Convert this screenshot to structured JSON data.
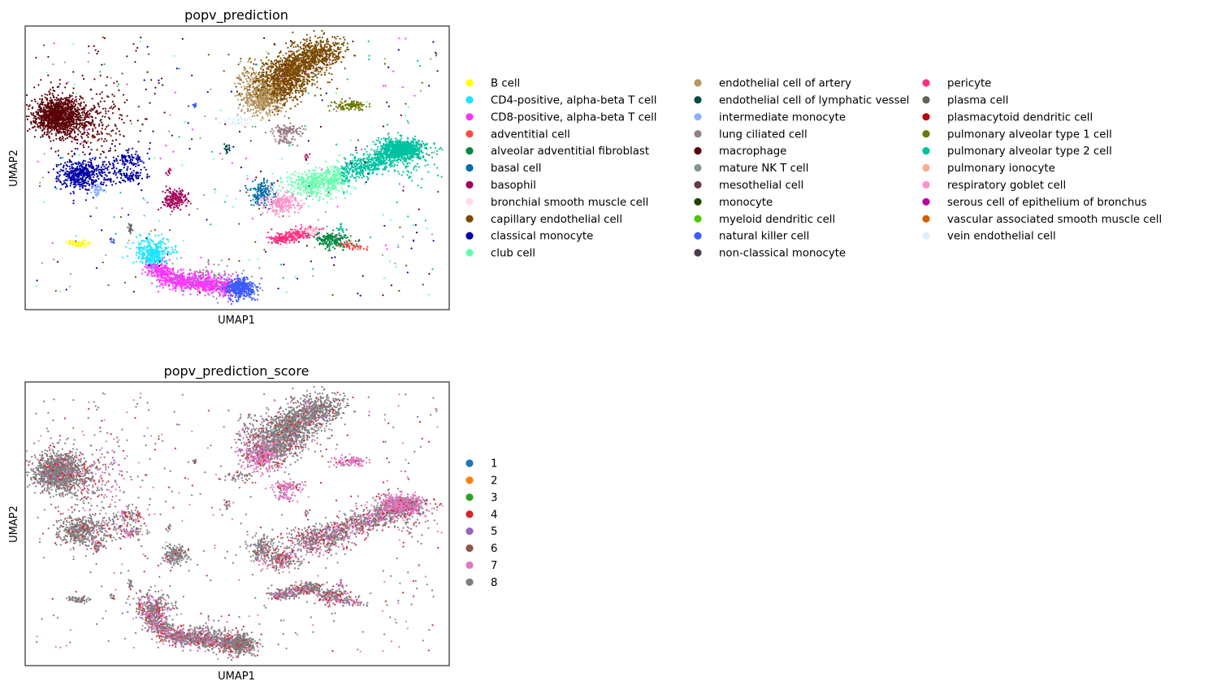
{
  "chart_data": [
    {
      "type": "scatter",
      "title": "popv_prediction",
      "xlabel": "UMAP1",
      "ylabel": "UMAP2",
      "ticks": false,
      "grid": false,
      "legend_placement": "right",
      "legend": [
        {
          "label": "B cell",
          "color": "#ffff00"
        },
        {
          "label": "CD4-positive, alpha-beta T cell",
          "color": "#1ce6ff"
        },
        {
          "label": "CD8-positive, alpha-beta T cell",
          "color": "#ff34ff"
        },
        {
          "label": "adventitial cell",
          "color": "#ff4a46"
        },
        {
          "label": "alveolar adventitial fibroblast",
          "color": "#008941"
        },
        {
          "label": "basal cell",
          "color": "#006fa6"
        },
        {
          "label": "basophil",
          "color": "#a30059"
        },
        {
          "label": "bronchial smooth muscle cell",
          "color": "#ffdbe5"
        },
        {
          "label": "capillary endothelial cell",
          "color": "#7a4900"
        },
        {
          "label": "classical monocyte",
          "color": "#0000a6"
        },
        {
          "label": "club cell",
          "color": "#63ffac"
        },
        {
          "label": "endothelial cell of artery",
          "color": "#b79762"
        },
        {
          "label": "endothelial cell of lymphatic vessel",
          "color": "#004d43"
        },
        {
          "label": "intermediate monocyte",
          "color": "#8fb0ff"
        },
        {
          "label": "lung ciliated cell",
          "color": "#997d87"
        },
        {
          "label": "macrophage",
          "color": "#5a0007"
        },
        {
          "label": "mature NK T cell",
          "color": "#809693"
        },
        {
          "label": "mesothelial cell",
          "color": "#6a3a4c"
        },
        {
          "label": "monocyte",
          "color": "#1b4400"
        },
        {
          "label": "myeloid dendritic cell",
          "color": "#4fc601"
        },
        {
          "label": "natural killer cell",
          "color": "#3b5dff"
        },
        {
          "label": "non-classical monocyte",
          "color": "#4a3b53"
        },
        {
          "label": "pericyte",
          "color": "#ff2f80"
        },
        {
          "label": "plasma cell",
          "color": "#61615a"
        },
        {
          "label": "plasmacytoid dendritic cell",
          "color": "#ba0900"
        },
        {
          "label": "pulmonary alveolar type 1 cell",
          "color": "#6b7900"
        },
        {
          "label": "pulmonary alveolar type 2 cell",
          "color": "#00c2a0"
        },
        {
          "label": "pulmonary ionocyte",
          "color": "#ffaa92"
        },
        {
          "label": "respiratory goblet cell",
          "color": "#ff90c9"
        },
        {
          "label": "serous cell of epithelium of bronchus",
          "color": "#b903aa"
        },
        {
          "label": "vascular associated smooth muscle cell",
          "color": "#d16100"
        },
        {
          "label": "vein endothelial cell",
          "color": "#ddefff"
        }
      ]
    },
    {
      "type": "scatter",
      "title": "popv_prediction_score",
      "xlabel": "UMAP1",
      "ylabel": "UMAP2",
      "ticks": false,
      "grid": false,
      "legend_placement": "right",
      "legend": [
        {
          "label": "1",
          "color": "#1f77b4"
        },
        {
          "label": "2",
          "color": "#ff7f0e"
        },
        {
          "label": "3",
          "color": "#2ca02c"
        },
        {
          "label": "4",
          "color": "#d62728"
        },
        {
          "label": "5",
          "color": "#9467bd"
        },
        {
          "label": "6",
          "color": "#8c564b"
        },
        {
          "label": "7",
          "color": "#e377c2"
        },
        {
          "label": "8",
          "color": "#7f7f7f"
        }
      ]
    }
  ]
}
